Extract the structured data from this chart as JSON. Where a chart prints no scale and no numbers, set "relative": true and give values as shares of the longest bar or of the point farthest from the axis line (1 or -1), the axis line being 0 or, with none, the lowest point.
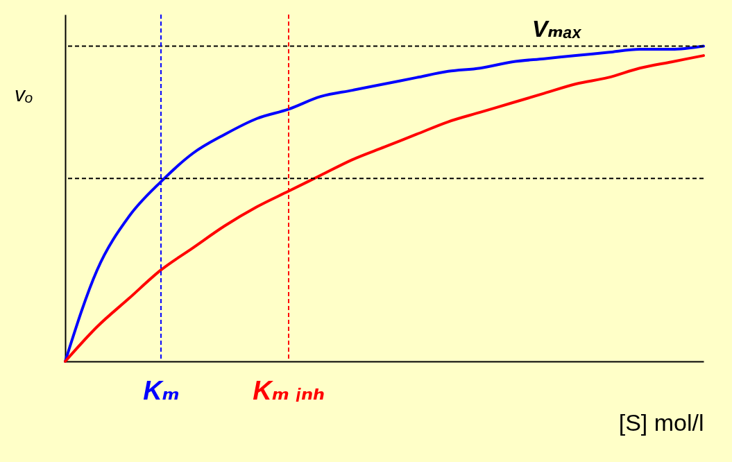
{
  "chart_data": {
    "type": "line",
    "relative": true,
    "xlabel": "[S] mol/l",
    "ylabel": "vₒ",
    "categories": [
      null,
      null,
      null,
      "Kₘ",
      null,
      null,
      null,
      "Kₘ ᵢₙₕ",
      null,
      null,
      null,
      null,
      null,
      null,
      null,
      null,
      null,
      null,
      null,
      null,
      null
    ],
    "series": [
      {
        "color": "#0000ff",
        "values": [
          0,
          0.29,
          0.46,
          0.57,
          0.66,
          0.72,
          0.77,
          0.8,
          0.84,
          0.86,
          0.88,
          0.9,
          0.92,
          0.93,
          0.95,
          0.96,
          0.97,
          0.98,
          0.99,
          0.99,
          1
        ]
      },
      {
        "color": "#ff0000",
        "values": [
          0,
          0.11,
          0.2,
          0.29,
          0.36,
          0.43,
          0.49,
          0.54,
          0.59,
          0.64,
          0.68,
          0.72,
          0.76,
          0.79,
          0.82,
          0.85,
          0.88,
          0.9,
          0.93,
          0.95,
          0.97
        ]
      }
    ],
    "ref_lines": [
      {
        "axis": "y",
        "value": 1,
        "label": "Vₘₐₓ",
        "color": "#000000",
        "line_style": "dashed"
      },
      {
        "axis": "y",
        "value": 0.58,
        "color": "#000000",
        "line_style": "dashed"
      },
      {
        "axis": "x",
        "value": "Kₘ",
        "color": "#0000ff",
        "line_style": "dashed"
      },
      {
        "axis": "x",
        "value": "Kₘ ᵢₙₕ",
        "color": "#ff0000",
        "line_style": "dashed"
      }
    ],
    "grid": false
  }
}
